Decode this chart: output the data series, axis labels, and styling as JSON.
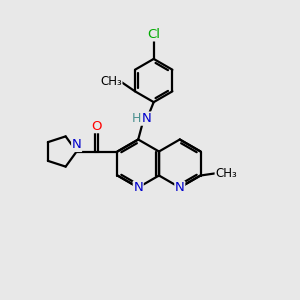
{
  "bg_color": "#e8e8e8",
  "atom_colors": {
    "N": "#0000cc",
    "O": "#ff0000",
    "Cl": "#00aa00",
    "C": "#000000",
    "H": "#4a9090"
  },
  "bond_color": "#000000",
  "figsize": [
    3.0,
    3.0
  ],
  "dpi": 100,
  "bond_lw": 1.6,
  "font_size": 9.5
}
